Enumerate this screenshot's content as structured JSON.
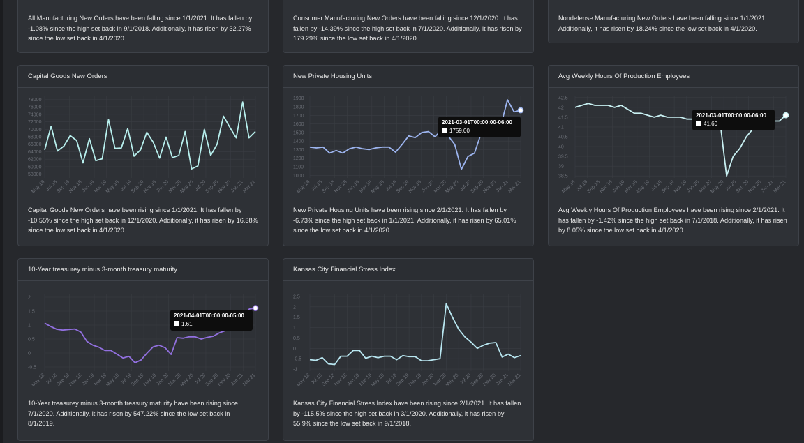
{
  "top_row": [
    {
      "text": "All Manufacturing New Orders have been falling since 1/1/2021. It has fallen by -1.08% since the high set back in 9/1/2018. Additionally, it has risen by 32.27% since the low set back in 4/1/2020."
    },
    {
      "text": "Consumer Manufacturing New Orders have been falling since 12/1/2020. It has fallen by -14.39% since the high set back in 7/1/2020. Additionally, it has risen by 179.29% since the low set back in 4/1/2020."
    },
    {
      "text": "Nondefense Manufacturing New Orders have been falling since 1/1/2021. Additionally, it has risen by 18.24% since the low set back in 4/1/2020."
    }
  ],
  "cards": [
    {
      "title": "Capital Goods New Orders",
      "description": "Capital Goods New Orders have been rising since 1/1/2021. It has fallen by -10.55% since the high set back in 12/1/2020. Additionally, it has risen by 16.38% since the low set back in 4/1/2020."
    },
    {
      "title": "New Private Housing Units",
      "description": "New Private Housing Units have been rising since 2/1/2021. It has fallen by -6.73% since the high set back in 1/1/2021. Additionally, it has risen by 65.01% since the low set back in 4/1/2020.",
      "tooltip": {
        "date": "2021-03-01T00:00:00-06:00",
        "value": "1759.00"
      }
    },
    {
      "title": "Avg Weekly Hours Of Production Employees",
      "description": "Avg Weekly Hours Of Production Employees have been rising since 2/1/2021. It has fallen by -1.42% since the high set back in 7/1/2018. Additionally, it has risen by 8.05% since the low set back in 4/1/2020.",
      "tooltip": {
        "date": "2021-03-01T00:00:00-06:00",
        "value": "41.60"
      }
    },
    {
      "title": "10-Year treasurey minus 3-month treasury maturity",
      "description": "10-Year treasurey minus 3-month treasury maturity have been rising since 7/1/2020. Additionally, it has risen by 547.22% since the low set back in 8/1/2019.",
      "tooltip": {
        "date": "2021-04-01T00:00:00-05:00",
        "value": "1.61"
      }
    },
    {
      "title": "Kansas City Financial Stress Index",
      "description": "Kansas City Financial Stress Index have been rising since 2/1/2021. It has fallen by -115.5% since the high set back in 3/1/2020. Additionally, it has risen by 55.9% since the low set back in 9/1/2018."
    }
  ],
  "chart_data": [
    {
      "type": "line",
      "title": "Capital Goods New Orders",
      "color": "#b8f0ee",
      "x_ticks": [
        "May 18",
        "Jul 18",
        "Sep 18",
        "Nov 18",
        "Jan 19",
        "Mar 19",
        "May 19",
        "Jul 19",
        "Sep 19",
        "Nov 19",
        "Jan 20",
        "Mar 20",
        "May 20",
        "Jul 20",
        "Sep 20",
        "Nov 20",
        "Jan 21",
        "Mar 21"
      ],
      "y_ticks": [
        58000,
        60000,
        62000,
        64000,
        66000,
        68000,
        70000,
        72000,
        74000,
        76000,
        78000
      ],
      "ylim": [
        57000,
        79000
      ],
      "values": [
        64500,
        70800,
        64200,
        65500,
        68300,
        67000,
        61000,
        67500,
        61600,
        62100,
        72600,
        64900,
        65000,
        70200,
        62800,
        64500,
        69200,
        66500,
        62300,
        67900,
        62400,
        63000,
        69400,
        59400,
        60200,
        70000,
        63000,
        66000,
        73500,
        70500,
        67700,
        77300,
        67700,
        69400
      ]
    },
    {
      "type": "line",
      "title": "New Private Housing Units",
      "color": "#9db5f0",
      "x_ticks": [
        "May 18",
        "Jul 18",
        "Sep 18",
        "Nov 18",
        "Jan 19",
        "Mar 19",
        "May 19",
        "Jul 19",
        "Sep 19",
        "Nov 19",
        "Jan 20",
        "Mar 20",
        "May 20",
        "Jul 20",
        "Sep 20",
        "Nov 20",
        "Jan 21",
        "Mar 21"
      ],
      "y_ticks": [
        1000,
        1100,
        1200,
        1300,
        1400,
        1500,
        1600,
        1700,
        1800,
        1900
      ],
      "ylim": [
        970,
        1930
      ],
      "values": [
        1330,
        1320,
        1330,
        1260,
        1290,
        1260,
        1310,
        1330,
        1310,
        1300,
        1320,
        1330,
        1330,
        1270,
        1360,
        1460,
        1440,
        1500,
        1510,
        1450,
        1530,
        1460,
        1360,
        1070,
        1220,
        1260,
        1490,
        1490,
        1550,
        1580,
        1880,
        1740,
        1759
      ]
    },
    {
      "type": "line",
      "title": "Avg Weekly Hours Of Production Employees",
      "color": "#c8f0f2",
      "x_ticks": [
        "May 18",
        "Jul 18",
        "Sep 18",
        "Nov 18",
        "Jan 19",
        "Mar 19",
        "May 19",
        "Jul 19",
        "Sep 19",
        "Nov 19",
        "Jan 20",
        "Mar 20",
        "May 20",
        "Jul 20",
        "Sep 20",
        "Nov 20",
        "Jan 21",
        "Mar 21"
      ],
      "y_ticks": [
        38.5,
        39.0,
        39.5,
        40.0,
        40.5,
        41.0,
        41.5,
        42.0,
        42.5
      ],
      "ylim": [
        38.4,
        42.6
      ],
      "values": [
        42.0,
        42.1,
        42.2,
        42.1,
        42.1,
        42.1,
        42.0,
        42.1,
        41.9,
        41.7,
        41.7,
        41.6,
        41.5,
        41.6,
        41.5,
        41.5,
        41.5,
        41.4,
        41.4,
        41.4,
        41.4,
        41.3,
        41.3,
        38.5,
        39.5,
        39.9,
        40.5,
        40.9,
        41.1,
        41.3,
        41.3,
        41.3,
        41.6
      ]
    },
    {
      "type": "line",
      "title": "10-Year treasurey minus 3-month treasury maturity",
      "color": "#9270e0",
      "x_ticks": [
        "May 18",
        "Jul 18",
        "Sep 18",
        "Nov 18",
        "Jan 19",
        "Mar 19",
        "May 19",
        "Jul 19",
        "Sep 19",
        "Nov 19",
        "Jan 20",
        "Mar 20",
        "May 20",
        "Jul 20",
        "Sep 20",
        "Nov 20",
        "Jan 21",
        "Mar 21"
      ],
      "y_ticks": [
        -0.5,
        0,
        0.5,
        1.0,
        1.5,
        2.0
      ],
      "ylim": [
        -0.65,
        2.1
      ],
      "values": [
        1.07,
        0.95,
        0.85,
        0.82,
        0.84,
        0.86,
        0.75,
        0.42,
        0.28,
        0.21,
        0.09,
        0.09,
        -0.04,
        -0.18,
        -0.12,
        -0.35,
        -0.25,
        0.0,
        0.22,
        0.28,
        0.19,
        -0.05,
        0.55,
        0.53,
        0.58,
        0.58,
        0.5,
        0.56,
        0.6,
        0.72,
        0.8,
        0.88,
        1.08,
        1.3,
        1.58,
        1.61
      ]
    },
    {
      "type": "line",
      "title": "Kansas City Financial Stress Index",
      "color": "#b8e6f0",
      "x_ticks": [
        "May 18",
        "Jul 18",
        "Sep 18",
        "Nov 18",
        "Jan 19",
        "Mar 19",
        "May 19",
        "Jul 19",
        "Sep 19",
        "Nov 19",
        "Jan 20",
        "Mar 20",
        "May 20",
        "Jul 20",
        "Sep 20",
        "Nov 20",
        "Jan 21",
        "Mar 21"
      ],
      "y_ticks": [
        -1.0,
        -0.5,
        0,
        0.5,
        1.0,
        1.5,
        2.0,
        2.5
      ],
      "ylim": [
        -1.1,
        2.6
      ],
      "values": [
        -0.55,
        -0.58,
        -0.45,
        -0.75,
        -0.78,
        -0.38,
        -0.38,
        -0.1,
        -0.1,
        -0.48,
        -0.38,
        -0.45,
        -0.38,
        -0.38,
        -0.55,
        -0.35,
        -0.4,
        -0.4,
        -0.6,
        -0.6,
        -0.55,
        -0.5,
        2.15,
        1.5,
        0.92,
        0.55,
        0.3,
        0.0,
        0.15,
        0.25,
        0.28,
        -0.42,
        -0.28,
        -0.45,
        -0.35
      ]
    }
  ]
}
